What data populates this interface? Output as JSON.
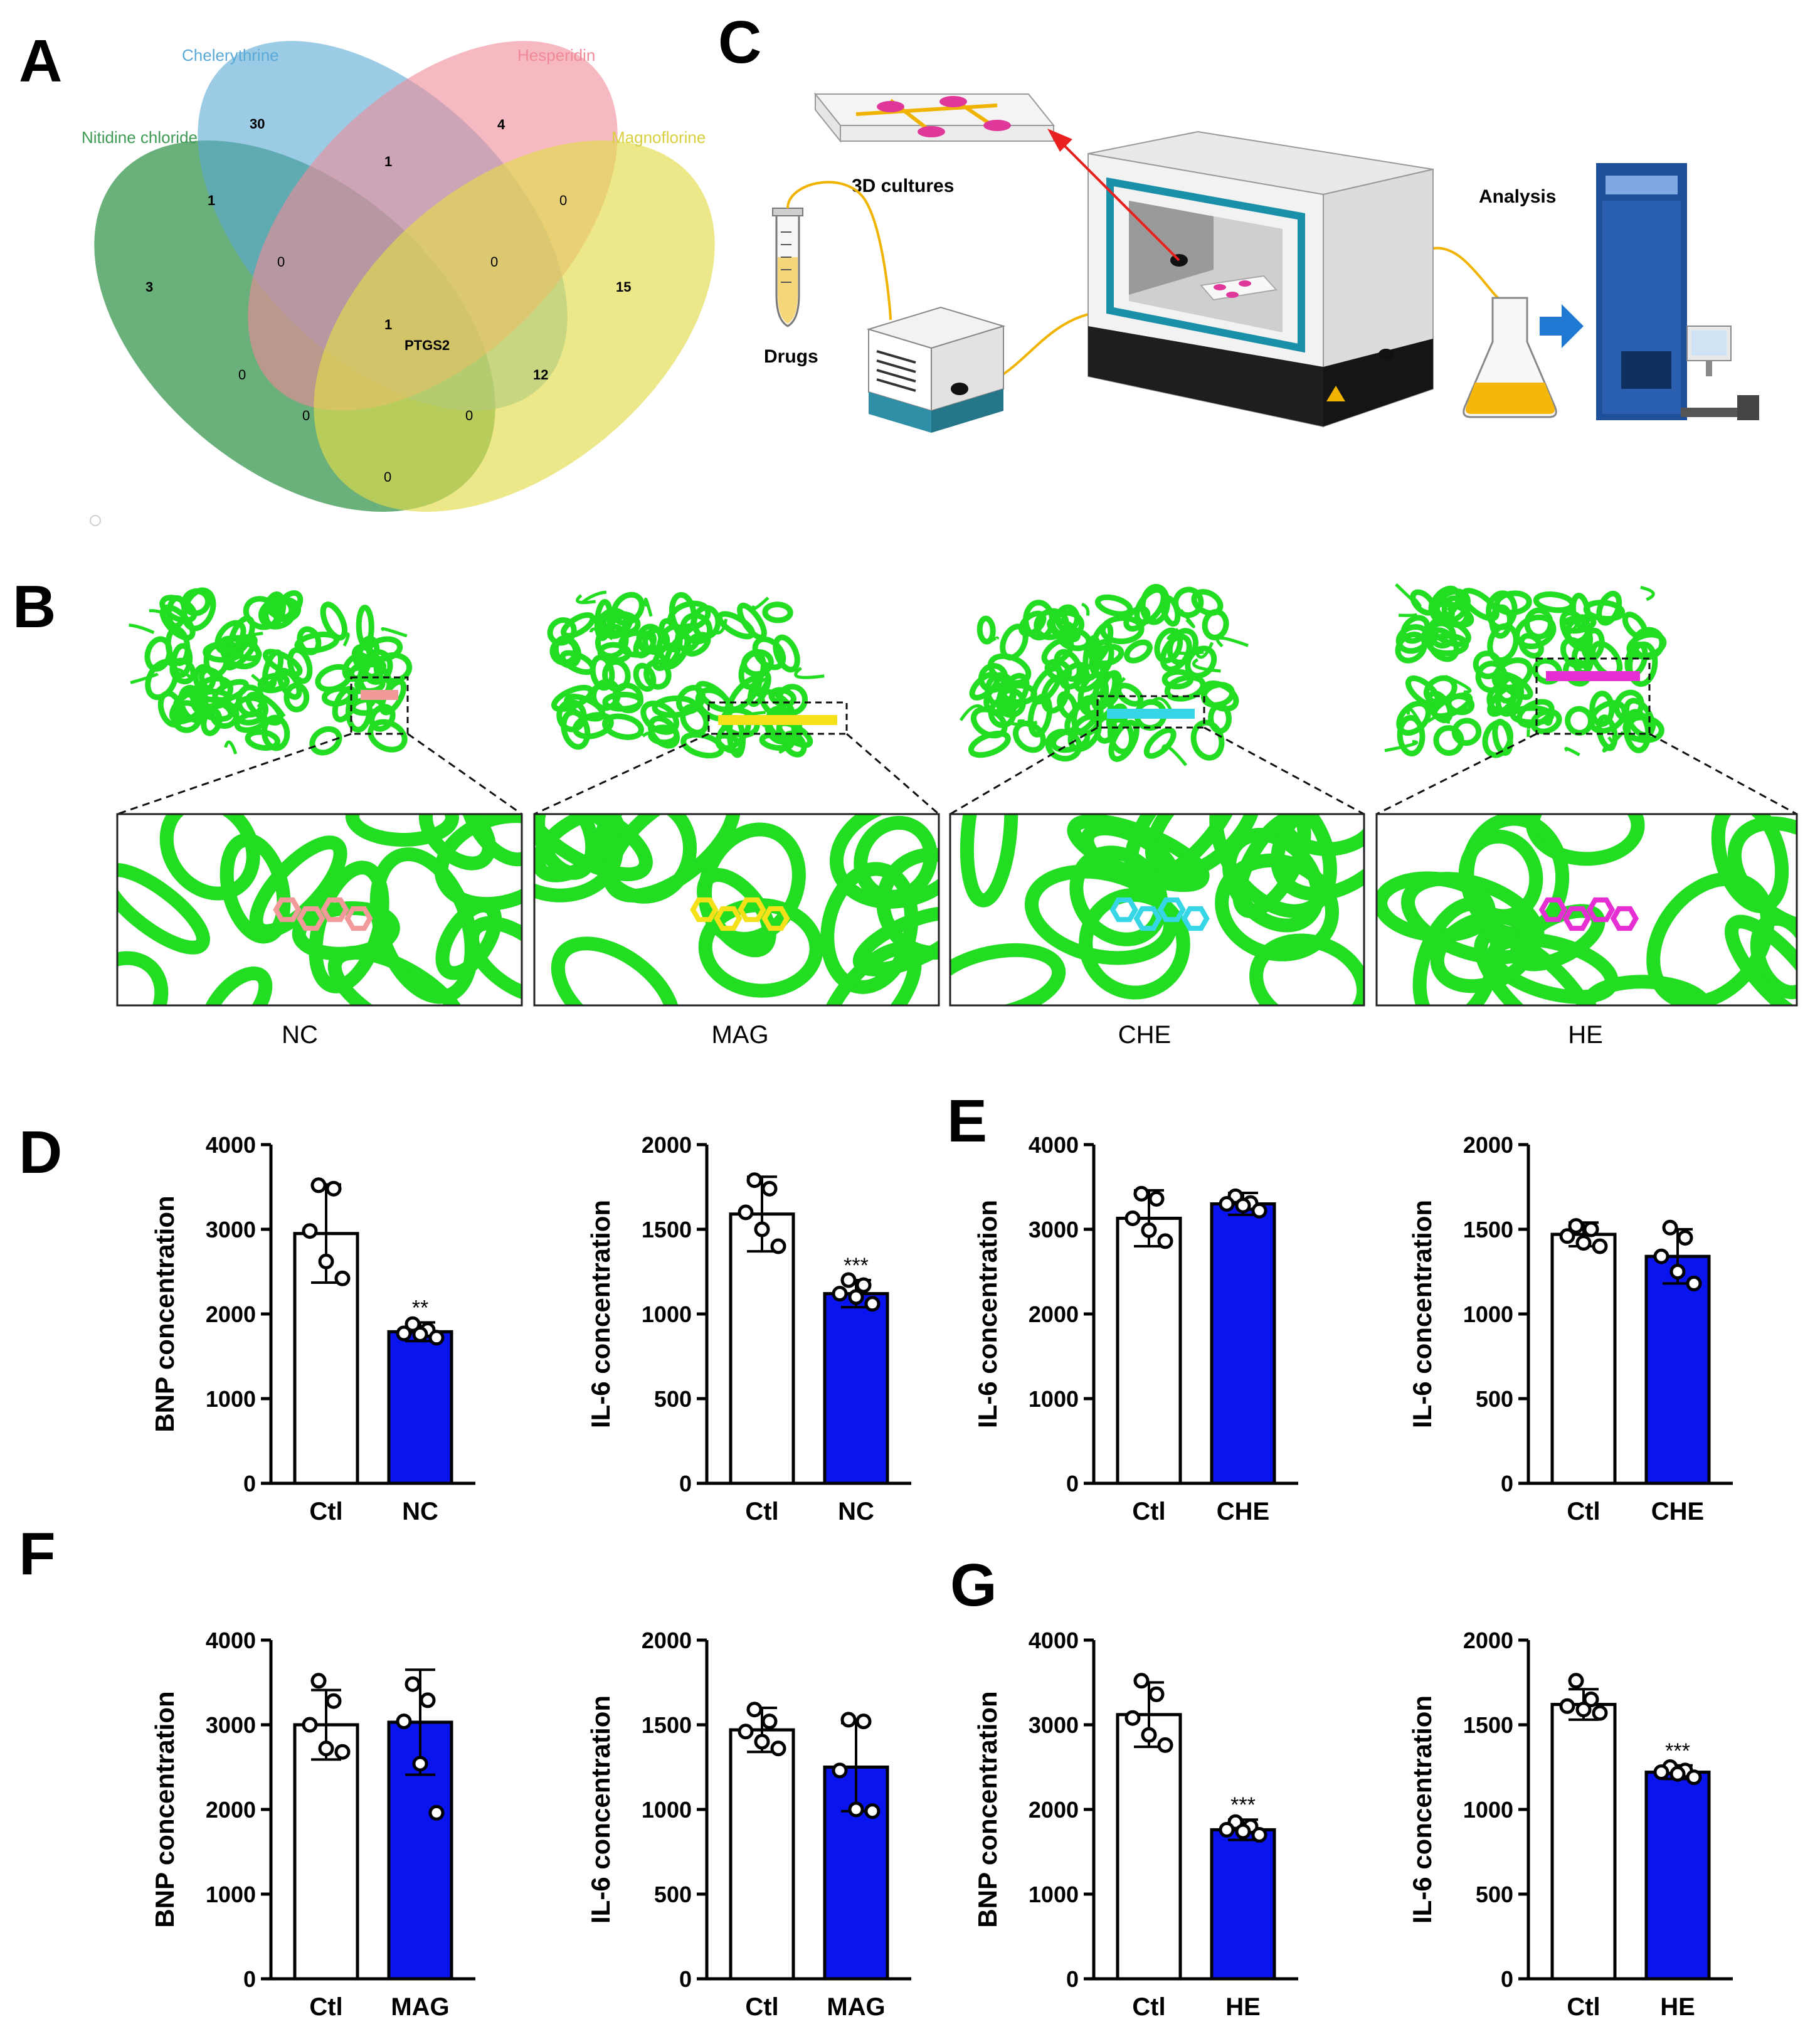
{
  "panels": {
    "A": "A",
    "B": "B",
    "C": "C",
    "D": "D",
    "E": "E",
    "F": "F",
    "G": "G"
  },
  "venn": {
    "sets": [
      {
        "name": "Chelerythrine",
        "color": "#5aa9d6"
      },
      {
        "name": "Hesperidin",
        "color": "#f08a97"
      },
      {
        "name": "Nitidine chloride",
        "color": "#3f9a55"
      },
      {
        "name": "Magnoflorine",
        "color": "#e2dc4c"
      }
    ],
    "counts": {
      "che_only": "30",
      "hes_only": "4",
      "nc_only": "3",
      "mag_only": "15",
      "che_hes": "1",
      "nc_che": "1",
      "hes_mag": "0",
      "nc_che_hes": "0",
      "che_hes_mag": "0",
      "all_four": "1",
      "nc_hes": "0",
      "che_mag": "12",
      "nc_hes_mag": "0",
      "nc_che_mag": "0",
      "nc_mag": "0"
    },
    "core_target": "PTGS2"
  },
  "schematic": {
    "cultures_label": "3D cultures",
    "drugs_label": "Drugs",
    "analysis_label": "Analysis"
  },
  "docking": {
    "labels": [
      "NC",
      "MAG",
      "CHE",
      "HE"
    ],
    "ligand_colors": [
      "#f29a9a",
      "#f5e11a",
      "#36d6e6",
      "#e52fd2"
    ],
    "protein_color": "#22dd22"
  },
  "chart_data": [
    {
      "panel": "D",
      "type": "bar",
      "categories": [
        "Ctl",
        "NC"
      ],
      "values": [
        2950,
        1790
      ],
      "errors": [
        580,
        110
      ],
      "points": [
        [
          3520,
          3480,
          2980,
          2620,
          2420
        ],
        [
          1880,
          1810,
          1770,
          1760,
          1720
        ]
      ],
      "significance": [
        "",
        "**"
      ],
      "ylabel": "BNP concentration",
      "ylim": [
        0,
        4000
      ],
      "yticks": [
        0,
        1000,
        2000,
        3000,
        4000
      ]
    },
    {
      "panel": "D",
      "type": "bar",
      "categories": [
        "Ctl",
        "NC"
      ],
      "values": [
        1590,
        1120
      ],
      "errors": [
        220,
        80
      ],
      "points": [
        [
          1790,
          1740,
          1600,
          1500,
          1400
        ],
        [
          1200,
          1170,
          1120,
          1100,
          1060
        ]
      ],
      "significance": [
        "",
        "***"
      ],
      "ylabel": "IL-6 concentration",
      "ylim": [
        0,
        2000
      ],
      "yticks": [
        0,
        500,
        1000,
        1500,
        2000
      ]
    },
    {
      "panel": "E",
      "type": "bar",
      "categories": [
        "Ctl",
        "CHE"
      ],
      "values": [
        3130,
        3300
      ],
      "errors": [
        330,
        130
      ],
      "points": [
        [
          3420,
          3360,
          3130,
          2990,
          2860
        ],
        [
          3390,
          3310,
          3300,
          3280,
          3220
        ]
      ],
      "significance": [
        "",
        ""
      ],
      "ylabel": "IL-6 concentration",
      "ylim": [
        0,
        4000
      ],
      "yticks": [
        0,
        1000,
        2000,
        3000,
        4000
      ]
    },
    {
      "panel": "E",
      "type": "bar",
      "categories": [
        "Ctl",
        "CHE"
      ],
      "values": [
        1470,
        1340
      ],
      "errors": [
        70,
        160
      ],
      "points": [
        [
          1520,
          1500,
          1460,
          1420,
          1400
        ],
        [
          1510,
          1450,
          1340,
          1250,
          1180
        ]
      ],
      "significance": [
        "",
        ""
      ],
      "ylabel": "IL-6 concentration",
      "ylim": [
        0,
        2000
      ],
      "yticks": [
        0,
        500,
        1000,
        1500,
        2000
      ]
    },
    {
      "panel": "F",
      "type": "bar",
      "categories": [
        "Ctl",
        "MAG"
      ],
      "values": [
        3000,
        3030
      ],
      "errors": [
        410,
        620
      ],
      "points": [
        [
          3520,
          3280,
          3000,
          2720,
          2680
        ],
        [
          3480,
          3290,
          3040,
          2540,
          1960
        ]
      ],
      "significance": [
        "",
        ""
      ],
      "ylabel": "BNP concentration",
      "ylim": [
        0,
        4000
      ],
      "yticks": [
        0,
        1000,
        2000,
        3000,
        4000
      ]
    },
    {
      "panel": "F",
      "type": "bar",
      "categories": [
        "Ctl",
        "MAG"
      ],
      "values": [
        1470,
        1250
      ],
      "errors": [
        130,
        260
      ],
      "points": [
        [
          1590,
          1520,
          1460,
          1400,
          1360
        ],
        [
          1530,
          1520,
          1230,
          1000,
          990
        ]
      ],
      "significance": [
        "",
        ""
      ],
      "ylabel": "IL-6 concentration",
      "ylim": [
        0,
        2000
      ],
      "yticks": [
        0,
        500,
        1000,
        1500,
        2000
      ]
    },
    {
      "panel": "G",
      "type": "bar",
      "categories": [
        "Ctl",
        "HE"
      ],
      "values": [
        3120,
        1760
      ],
      "errors": [
        380,
        120
      ],
      "points": [
        [
          3520,
          3360,
          3080,
          2880,
          2760
        ],
        [
          1850,
          1800,
          1760,
          1740,
          1700
        ]
      ],
      "significance": [
        "",
        "***"
      ],
      "ylabel": "BNP concentration",
      "ylim": [
        0,
        4000
      ],
      "yticks": [
        0,
        1000,
        2000,
        3000,
        4000
      ]
    },
    {
      "panel": "G",
      "type": "bar",
      "categories": [
        "Ctl",
        "HE"
      ],
      "values": [
        1620,
        1220
      ],
      "errors": [
        90,
        40
      ],
      "points": [
        [
          1760,
          1650,
          1610,
          1590,
          1570
        ],
        [
          1250,
          1230,
          1220,
          1210,
          1190
        ]
      ],
      "significance": [
        "",
        "***"
      ],
      "ylabel": "IL-6 concentration",
      "ylim": [
        0,
        2000
      ],
      "yticks": [
        0,
        500,
        1000,
        1500,
        2000
      ]
    }
  ]
}
